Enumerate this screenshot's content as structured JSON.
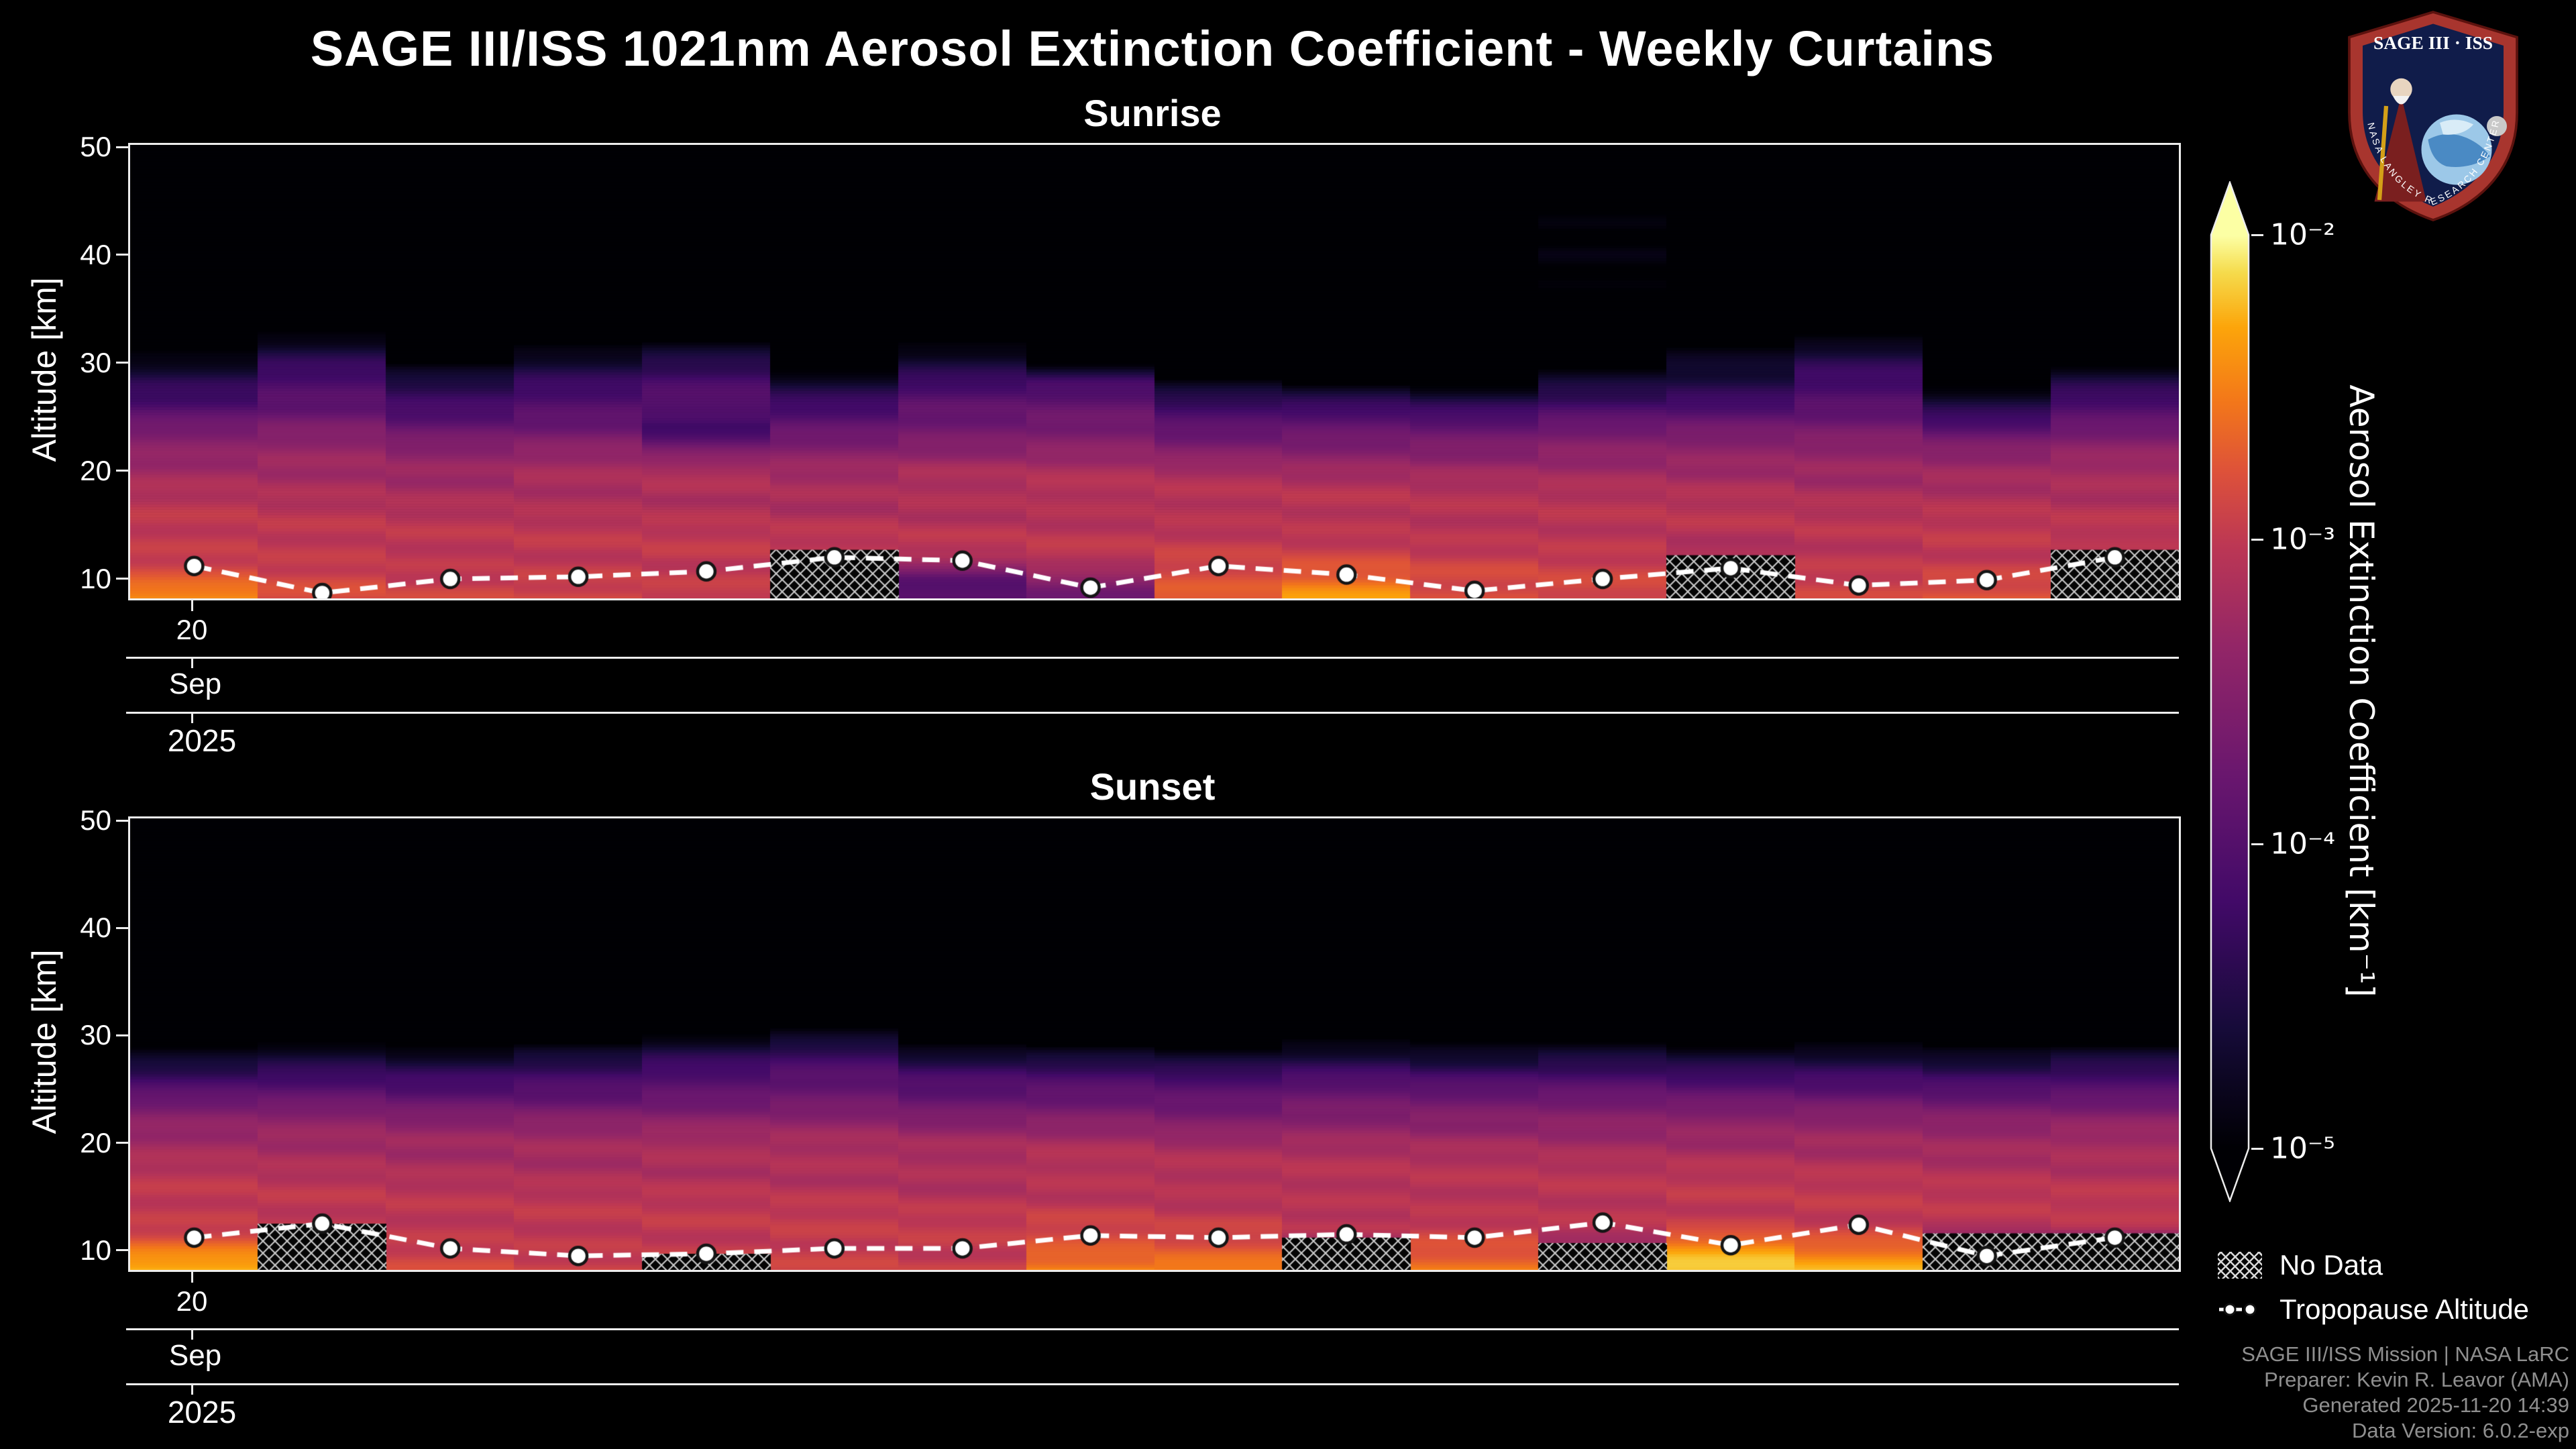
{
  "title": "SAGE III/ISS 1021nm Aerosol Extinction Coefficient - Weekly Curtains",
  "logo": {
    "title": "SAGE III · ISS",
    "border_text": "NASA LANGLEY RESEARCH CENTER"
  },
  "axes": {
    "ylabel": "Altitude [km]",
    "yticks": [
      10,
      20,
      30,
      40,
      50
    ],
    "ylim": [
      8,
      50
    ],
    "day": "20",
    "month": "Sep",
    "year": "2025"
  },
  "colorbar": {
    "label": "Aerosol Extinction Coefficient [km⁻¹]",
    "ticks": [
      {
        "label": "10⁻²",
        "exp": -2
      },
      {
        "label": "10⁻³",
        "exp": -3
      },
      {
        "label": "10⁻⁴",
        "exp": -4
      },
      {
        "label": "10⁻⁵",
        "exp": -5
      }
    ],
    "vmin_exp": -5,
    "vmax_exp": -2,
    "scale": "log10",
    "colormap_name": "inferno",
    "colormap": [
      [
        0.0,
        "#000004"
      ],
      [
        0.13,
        "#160b39"
      ],
      [
        0.27,
        "#420a68"
      ],
      [
        0.41,
        "#6a176e"
      ],
      [
        0.55,
        "#932667"
      ],
      [
        0.66,
        "#bc3754"
      ],
      [
        0.74,
        "#dd513a"
      ],
      [
        0.82,
        "#f37819"
      ],
      [
        0.9,
        "#fca50a"
      ],
      [
        0.96,
        "#f5db4c"
      ],
      [
        1.0,
        "#fcffa4"
      ]
    ]
  },
  "legend": {
    "no_data": "No Data",
    "tropopause": "Tropopause Altitude"
  },
  "credits": {
    "line1": "SAGE III/ISS Mission | NASA LaRC",
    "line2": "Preparer: Kevin R. Leavor (AMA)",
    "line3": "Generated 2025-11-20 14:39",
    "line4": "Data Version: 6.0.2-exp"
  },
  "chart_data": [
    {
      "type": "heatmap",
      "title": "Sunrise",
      "value_units": "km^-1",
      "date_ticks": {
        "day": "20",
        "month": "Sep",
        "year": "2025"
      },
      "altitudes_km": [
        8,
        10,
        12,
        14,
        16,
        18,
        20,
        22,
        24,
        26,
        28,
        30,
        32,
        34,
        36,
        40,
        45,
        50
      ],
      "columns": [
        {
          "profile": [
            0.004,
            0.0016,
            0.0012,
            0.001,
            0.0009,
            0.0008,
            0.0006,
            0.00035,
            0.0002,
            9e-05,
            4e-05,
            1.2e-05,
            6e-06,
            4e-06,
            3e-06,
            2e-06,
            2e-06,
            2e-06
          ],
          "tropopause_km": 11.0,
          "no_data_top_km": null
        },
        {
          "profile": [
            0.0014,
            0.0013,
            0.0011,
            0.00095,
            0.00085,
            0.00075,
            0.0006,
            0.0004,
            0.00025,
            0.00014,
            8e-05,
            4e-05,
            1.5e-05,
            5e-06,
            3e-06,
            2e-06,
            2e-06,
            2e-06
          ],
          "tropopause_km": 8.5,
          "no_data_top_km": null
        },
        {
          "profile": [
            0.0012,
            0.0011,
            0.001,
            0.0009,
            0.0008,
            0.0007,
            0.0005,
            0.0003,
            0.00015,
            7e-05,
            3e-05,
            8e-06,
            4e-06,
            3e-06,
            2e-06,
            2e-06,
            2e-06,
            2e-06
          ],
          "tropopause_km": 9.8,
          "no_data_top_km": null
        },
        {
          "profile": [
            0.0013,
            0.0012,
            0.001,
            0.0009,
            0.0008,
            0.00075,
            0.0006,
            0.00035,
            0.00018,
            0.0001,
            5e-05,
            2e-05,
            8e-06,
            4e-06,
            3e-06,
            2e-06,
            2e-06,
            2e-06
          ],
          "tropopause_km": 10.0,
          "no_data_top_km": null
        },
        {
          "profile": [
            0.0012,
            0.0011,
            0.001,
            0.0009,
            0.00085,
            0.0008,
            0.00065,
            0.0002,
            6e-05,
            0.00012,
            7e-05,
            3.5e-05,
            1.2e-05,
            5e-06,
            3e-06,
            2e-06,
            2e-06,
            2e-06
          ],
          "tropopause_km": 10.5,
          "no_data_top_km": null
        },
        {
          "profile": [
            0.00025,
            0.00025,
            0.0009,
            0.0009,
            0.0008,
            0.0007,
            0.0005,
            0.0003,
            0.00015,
            6e-05,
            2e-05,
            6e-06,
            3e-06,
            2e-06,
            2e-06,
            2e-06,
            2e-06,
            2e-06
          ],
          "tropopause_km": 11.8,
          "no_data_top_km": 12.5
        },
        {
          "profile": [
            0.0001,
            0.00015,
            0.0008,
            0.0009,
            0.00085,
            0.00075,
            0.0006,
            0.00035,
            0.0002,
            0.00012,
            6e-05,
            2.5e-05,
            8e-06,
            3e-06,
            2e-06,
            2e-06,
            2e-06,
            2e-06
          ],
          "tropopause_km": 11.5,
          "no_data_top_km": null
        },
        {
          "profile": [
            0.0002,
            0.0004,
            0.0009,
            0.00095,
            0.00085,
            0.0008,
            0.00065,
            0.0004,
            0.00022,
            0.00013,
            7e-05,
            1e-05,
            4e-06,
            2e-06,
            2e-06,
            2e-06,
            2e-06,
            2e-06
          ],
          "tropopause_km": 9.0,
          "no_data_top_km": null
        },
        {
          "profile": [
            0.0025,
            0.0014,
            0.0011,
            0.001,
            0.0009,
            0.0008,
            0.0006,
            0.0003,
            0.00012,
            5e-05,
            1.5e-05,
            5e-06,
            2e-06,
            2e-06,
            2e-06,
            2e-06,
            2e-06,
            2e-06
          ],
          "tropopause_km": 11.0,
          "no_data_top_km": null
        },
        {
          "profile": [
            0.005,
            0.002,
            0.0012,
            0.001,
            0.0009,
            0.0008,
            0.00055,
            0.0003,
            0.00013,
            5e-05,
            1.2e-05,
            4e-06,
            2e-06,
            2e-06,
            2e-06,
            2e-06,
            2e-06,
            2e-06
          ],
          "tropopause_km": 10.2,
          "no_data_top_km": null
        },
        {
          "profile": [
            0.0015,
            0.0013,
            0.0011,
            0.00095,
            0.00085,
            0.00075,
            0.00055,
            0.0003,
            0.00012,
            4e-05,
            1e-05,
            4e-06,
            2e-06,
            2e-06,
            2e-06,
            2e-06,
            2e-06,
            2e-06
          ],
          "tropopause_km": 8.7,
          "no_data_top_km": null
        },
        {
          "profile": [
            0.0014,
            0.0012,
            0.0011,
            0.00095,
            0.00085,
            0.00075,
            0.0006,
            0.00035,
            0.00016,
            7e-05,
            2.5e-05,
            8e-06,
            6e-06,
            5e-06,
            8e-06,
            1.2e-05,
            9e-06,
            3e-06
          ],
          "tropopause_km": 9.8,
          "no_data_top_km": null
        },
        {
          "profile": [
            0.0002,
            0.0002,
            0.0007,
            0.0009,
            0.00085,
            0.00075,
            0.0006,
            0.00035,
            0.00018,
            8e-05,
            3e-05,
            1.5e-05,
            1e-05,
            4e-06,
            3e-06,
            2e-06,
            2e-06,
            2e-06
          ],
          "tropopause_km": 10.8,
          "no_data_top_km": 12.0
        },
        {
          "profile": [
            0.0012,
            0.0011,
            0.001,
            0.0009,
            0.0008,
            0.0007,
            0.00055,
            0.00035,
            0.0002,
            0.00012,
            7e-05,
            3.5e-05,
            1.2e-05,
            4e-06,
            2e-06,
            2e-06,
            2e-06,
            2e-06
          ],
          "tropopause_km": 9.2,
          "no_data_top_km": null
        },
        {
          "profile": [
            0.0016,
            0.0013,
            0.0011,
            0.00095,
            0.00085,
            0.00075,
            0.00055,
            0.00028,
            0.0001,
            3e-05,
            8e-06,
            3e-06,
            2e-06,
            2e-06,
            2e-06,
            2e-06,
            2e-06,
            2e-06
          ],
          "tropopause_km": 9.7,
          "no_data_top_km": null
        },
        {
          "profile": [
            0.0002,
            0.0002,
            0.0008,
            0.0009,
            0.00085,
            0.00075,
            0.0006,
            0.00035,
            0.00018,
            9e-05,
            3e-05,
            8e-06,
            3e-06,
            2e-06,
            2e-06,
            2e-06,
            2e-06,
            2e-06
          ],
          "tropopause_km": 11.8,
          "no_data_top_km": 12.5
        }
      ]
    },
    {
      "type": "heatmap",
      "title": "Sunset",
      "value_units": "km^-1",
      "date_ticks": {
        "day": "20",
        "month": "Sep",
        "year": "2025"
      },
      "altitudes_km": [
        8,
        10,
        12,
        14,
        16,
        18,
        20,
        22,
        24,
        26,
        28,
        30,
        32,
        34,
        36,
        40,
        45,
        50
      ],
      "columns": [
        {
          "profile": [
            0.006,
            0.0025,
            0.0012,
            0.001,
            0.0009,
            0.0008,
            0.0006,
            0.00035,
            0.00015,
            6e-05,
            1.5e-05,
            5e-06,
            2e-06,
            2e-06,
            2e-06,
            2e-06,
            2e-06,
            2e-06
          ],
          "tropopause_km": 11.0,
          "no_data_top_km": null
        },
        {
          "profile": [
            0.0003,
            0.0003,
            0.001,
            0.00095,
            0.00085,
            0.00075,
            0.0006,
            0.00035,
            0.00016,
            7e-05,
            2e-05,
            6e-06,
            2e-06,
            2e-06,
            2e-06,
            2e-06,
            2e-06,
            2e-06
          ],
          "tropopause_km": 12.3,
          "no_data_top_km": 12.3
        },
        {
          "profile": [
            0.0013,
            0.0012,
            0.001,
            0.0009,
            0.0008,
            0.0007,
            0.00055,
            0.0003,
            0.00014,
            6e-05,
            1.5e-05,
            4e-06,
            2e-06,
            2e-06,
            2e-06,
            2e-06,
            2e-06,
            2e-06
          ],
          "tropopause_km": 10.0,
          "no_data_top_km": null
        },
        {
          "profile": [
            0.0012,
            0.0011,
            0.001,
            0.0009,
            0.0008,
            0.0007,
            0.00055,
            0.00032,
            0.00015,
            7e-05,
            2e-05,
            5e-06,
            2e-06,
            2e-06,
            2e-06,
            2e-06,
            2e-06,
            2e-06
          ],
          "tropopause_km": 9.3,
          "no_data_top_km": null
        },
        {
          "profile": [
            0.0012,
            0.0011,
            0.001,
            0.0009,
            0.00085,
            0.00075,
            0.0006,
            0.00035,
            0.00018,
            9e-05,
            3.5e-05,
            1e-05,
            4e-06,
            2e-06,
            2e-06,
            2e-06,
            2e-06,
            2e-06
          ],
          "tropopause_km": 9.5,
          "no_data_top_km": 9.5
        },
        {
          "profile": [
            0.0013,
            0.0012,
            0.001,
            0.00095,
            0.00085,
            0.00075,
            0.0006,
            0.00038,
            0.0002,
            0.00011,
            5e-05,
            1.5e-05,
            5e-06,
            2e-06,
            2e-06,
            2e-06,
            2e-06,
            2e-06
          ],
          "tropopause_km": 10.0,
          "no_data_top_km": null
        },
        {
          "profile": [
            0.0012,
            0.0011,
            0.001,
            0.0009,
            0.0008,
            0.0007,
            0.00055,
            0.00032,
            0.00015,
            7e-05,
            2e-05,
            5e-06,
            2e-06,
            2e-06,
            2e-06,
            2e-06,
            2e-06,
            2e-06
          ],
          "tropopause_km": 10.0,
          "no_data_top_km": null
        },
        {
          "profile": [
            0.004,
            0.0018,
            0.0012,
            0.001,
            0.0009,
            0.0008,
            0.0006,
            0.00035,
            0.00016,
            7e-05,
            2e-05,
            5e-06,
            2e-06,
            2e-06,
            2e-06,
            2e-06,
            2e-06,
            2e-06
          ],
          "tropopause_km": 11.2,
          "no_data_top_km": null
        },
        {
          "profile": [
            0.004,
            0.0016,
            0.0011,
            0.00095,
            0.00085,
            0.00075,
            0.00055,
            0.0003,
            0.00014,
            6e-05,
            1.8e-05,
            6e-06,
            4e-06,
            3e-06,
            3e-06,
            4e-06,
            3e-06,
            2e-06
          ],
          "tropopause_km": 11.0,
          "no_data_top_km": null
        },
        {
          "profile": [
            0.0003,
            0.0003,
            0.0009,
            0.00095,
            0.00085,
            0.00075,
            0.0006,
            0.00035,
            0.00017,
            8e-05,
            2.5e-05,
            7e-06,
            2e-06,
            2e-06,
            2e-06,
            2e-06,
            2e-06,
            2e-06
          ],
          "tropopause_km": 11.3,
          "no_data_top_km": 11.0
        },
        {
          "profile": [
            0.003,
            0.0015,
            0.0011,
            0.00095,
            0.00085,
            0.00075,
            0.0006,
            0.00035,
            0.00016,
            7e-05,
            2e-05,
            6e-06,
            2e-06,
            2e-06,
            2e-06,
            2e-06,
            2e-06,
            2e-06
          ],
          "tropopause_km": 11.0,
          "no_data_top_km": null
        },
        {
          "profile": [
            0.0004,
            0.0004,
            0.001,
            0.00095,
            0.00085,
            0.00075,
            0.0006,
            0.00035,
            0.00017,
            8e-05,
            2.5e-05,
            7e-06,
            2e-06,
            2e-06,
            2e-06,
            2e-06,
            2e-06,
            2e-06
          ],
          "tropopause_km": 12.4,
          "no_data_top_km": 10.5
        },
        {
          "profile": [
            0.007,
            0.004,
            0.0013,
            0.001,
            0.0009,
            0.0008,
            0.0006,
            0.00035,
            0.00016,
            7e-05,
            2e-05,
            5e-06,
            2e-06,
            2e-06,
            2e-06,
            2e-06,
            2e-06,
            2e-06
          ],
          "tropopause_km": 10.3,
          "no_data_top_km": null
        },
        {
          "profile": [
            0.005,
            0.0025,
            0.0012,
            0.001,
            0.0009,
            0.0008,
            0.0006,
            0.00035,
            0.00016,
            7e-05,
            2e-05,
            5e-06,
            2e-06,
            2e-06,
            2e-06,
            2e-06,
            2e-06,
            2e-06
          ],
          "tropopause_km": 12.2,
          "no_data_top_km": null
        },
        {
          "profile": [
            0.00025,
            0.00025,
            0.0009,
            0.00095,
            0.00085,
            0.00075,
            0.00055,
            0.00032,
            0.00015,
            6e-05,
            1.5e-05,
            4e-06,
            2e-06,
            2e-06,
            2e-06,
            2e-06,
            2e-06,
            2e-06
          ],
          "tropopause_km": 9.3,
          "no_data_top_km": 11.4
        },
        {
          "profile": [
            0.00025,
            0.00025,
            0.0009,
            0.00095,
            0.00085,
            0.00075,
            0.0006,
            0.00035,
            0.00016,
            7e-05,
            2e-05,
            5e-06,
            2e-06,
            2e-06,
            2e-06,
            2e-06,
            2e-06,
            2e-06
          ],
          "tropopause_km": 11.0,
          "no_data_top_km": 11.4
        }
      ]
    }
  ]
}
